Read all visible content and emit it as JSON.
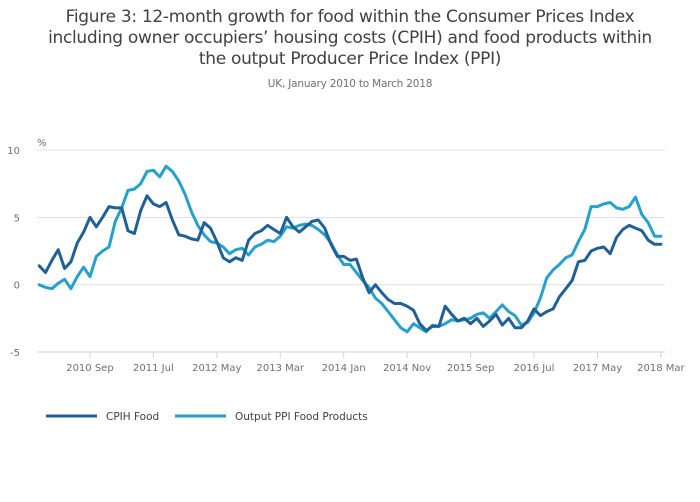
{
  "chart_data": {
    "type": "line",
    "title": "Figure 3: 12-month growth for food within the Consumer Prices Index including owner occupiers’ housing costs (CPIH) and food products within the output Producer Price Index (PPI)",
    "title_lines": [
      "Figure 3: 12-month growth for food within the Consumer Prices Index",
      "including owner occupiers’ housing costs (CPIH) and food products within",
      "the output Producer Price Index (PPI)"
    ],
    "subtitle": "UK, January 2010 to March 2018",
    "xlabel": "",
    "ylabel": "%",
    "ylim": [
      -5,
      10
    ],
    "yticks": [
      10,
      5,
      0,
      -5
    ],
    "x_start": "2010 Jan",
    "x_end": "2018 Mar",
    "xticks": [
      {
        "label": "2010 Sep",
        "month_index": 8
      },
      {
        "label": "2011 Jul",
        "month_index": 18
      },
      {
        "label": "2012 May",
        "month_index": 28
      },
      {
        "label": "2013 Mar",
        "month_index": 38
      },
      {
        "label": "2014 Jan",
        "month_index": 48
      },
      {
        "label": "2014 Nov",
        "month_index": 58
      },
      {
        "label": "2015 Sep",
        "month_index": 68
      },
      {
        "label": "2016 Jul",
        "month_index": 78
      },
      {
        "label": "2017 May",
        "month_index": 88
      },
      {
        "label": "2018 Mar",
        "month_index": 98
      }
    ],
    "grid": true,
    "legend_position": "bottom-left",
    "series": [
      {
        "name": "CPIH Food",
        "color": "#206095",
        "values": [
          1.4,
          0.9,
          1.8,
          2.6,
          1.2,
          1.7,
          3.1,
          3.9,
          5.0,
          4.3,
          5.0,
          5.8,
          5.7,
          5.7,
          4.0,
          3.8,
          5.5,
          6.6,
          6.0,
          5.8,
          6.1,
          4.8,
          3.7,
          3.6,
          3.4,
          3.3,
          4.6,
          4.2,
          3.2,
          2.0,
          1.7,
          2.0,
          1.8,
          3.3,
          3.8,
          4.0,
          4.4,
          4.1,
          3.8,
          5.0,
          4.3,
          3.9,
          4.3,
          4.7,
          4.8,
          4.2,
          3.0,
          2.1,
          2.1,
          1.8,
          1.9,
          0.5,
          -0.6,
          0.0,
          -0.6,
          -1.1,
          -1.4,
          -1.4,
          -1.6,
          -1.9,
          -2.9,
          -3.4,
          -3.1,
          -3.1,
          -1.6,
          -2.2,
          -2.7,
          -2.5,
          -2.9,
          -2.5,
          -3.1,
          -2.7,
          -2.2,
          -3.0,
          -2.5,
          -3.2,
          -3.2,
          -2.7,
          -1.8,
          -2.3,
          -2.0,
          -1.8,
          -0.9,
          -0.3,
          0.3,
          1.7,
          1.8,
          2.5,
          2.7,
          2.8,
          2.3,
          3.5,
          4.1,
          4.4,
          4.2,
          4.0,
          3.3,
          3.0,
          3.0
        ]
      },
      {
        "name": "Output PPI Food Products",
        "color": "#27a0cc",
        "values": [
          0.0,
          -0.2,
          -0.3,
          0.1,
          0.4,
          -0.3,
          0.6,
          1.3,
          0.6,
          2.1,
          2.5,
          2.8,
          4.7,
          5.7,
          7.0,
          7.1,
          7.5,
          8.4,
          8.5,
          8.0,
          8.8,
          8.4,
          7.7,
          6.7,
          5.4,
          4.4,
          3.7,
          3.2,
          3.1,
          2.8,
          2.3,
          2.6,
          2.7,
          2.2,
          2.8,
          3.0,
          3.3,
          3.2,
          3.6,
          4.3,
          4.2,
          4.4,
          4.5,
          4.4,
          4.1,
          3.7,
          3.1,
          2.2,
          1.5,
          1.5,
          0.9,
          0.3,
          -0.2,
          -1.0,
          -1.4,
          -2.0,
          -2.6,
          -3.2,
          -3.5,
          -2.9,
          -3.2,
          -3.5,
          -3.0,
          -3.1,
          -2.9,
          -2.6,
          -2.7,
          -2.6,
          -2.5,
          -2.2,
          -2.1,
          -2.5,
          -2.0,
          -1.5,
          -2.0,
          -2.3,
          -3.0,
          -2.8,
          -2.1,
          -1.0,
          0.5,
          1.1,
          1.5,
          2.0,
          2.2,
          3.2,
          4.1,
          5.8,
          5.8,
          6.0,
          6.1,
          5.7,
          5.6,
          5.8,
          6.5,
          5.2,
          4.6,
          3.6,
          3.6
        ]
      }
    ]
  },
  "legend": [
    {
      "label": "CPIH Food"
    },
    {
      "label": "Output PPI Food Products"
    }
  ]
}
